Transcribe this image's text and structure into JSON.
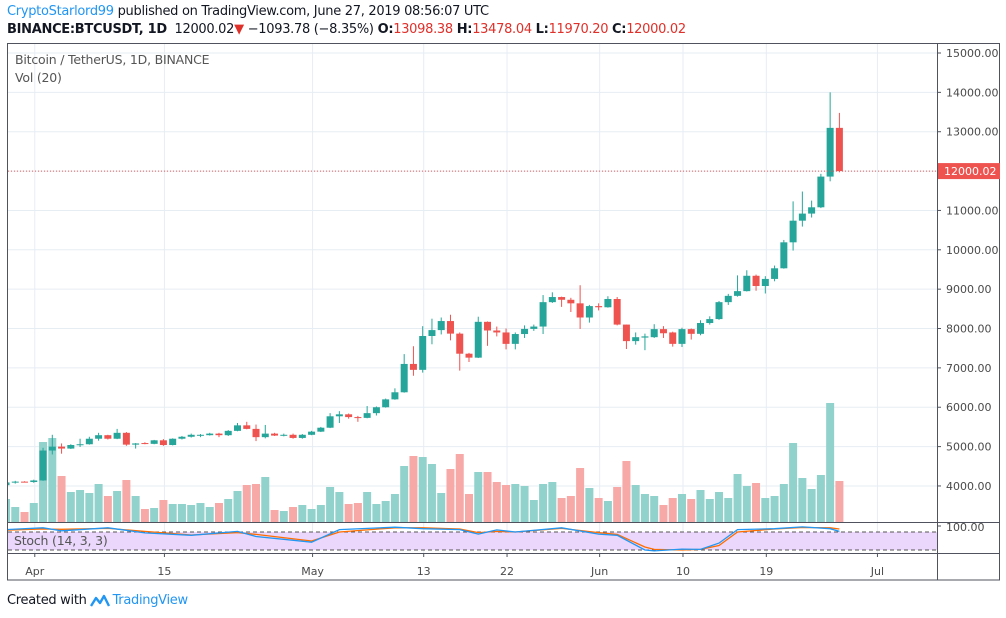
{
  "header": {
    "author": "CryptoStarlord99",
    "published_text": "published on TradingView.com, June 27, 2019 08:56:07 UTC",
    "symbol": "BINANCE:BTCUSDT, 1D",
    "last_price": "12000.02",
    "change_direction_icon": "triangle-down-icon",
    "change": "−1093.78 (−8.35%)",
    "open_label": "O:",
    "open": "13098.38",
    "high_label": "H:",
    "high": "13478.04",
    "low_label": "L:",
    "low": "11970.20",
    "close_label": "C:",
    "close": "12000.02"
  },
  "legend": {
    "title": "Bitcoin / TetherUS, 1D, BINANCE",
    "volume": "Vol (20)",
    "stoch": "Stoch (14, 3, 3)"
  },
  "footer": {
    "created_with": "Created with",
    "brand": "TradingView"
  },
  "colors": {
    "up": "#26a69a",
    "down": "#ef5350",
    "volume_up": "#92d2cc",
    "volume_down": "#f7a9a7",
    "stoch_k": "#2196f3",
    "stoch_d": "#ff6d00",
    "stoch_band": "#ead7fb",
    "link": "#2196f3"
  },
  "chart_data": {
    "type": "candlestick",
    "title": "Bitcoin / TetherUS, 1D, BINANCE",
    "price_axis": {
      "ylim": [
        3700,
        15250
      ],
      "tick_labels": [
        "4000.00",
        "5000.00",
        "6000.00",
        "7000.00",
        "8000.00",
        "9000.00",
        "10000.00",
        "11000.00",
        "12000.00",
        "13000.00",
        "14000.00",
        "15000.00"
      ],
      "current_price_label": "12000.02"
    },
    "time_axis": {
      "tick_labels": [
        {
          "date": "2019-04-01",
          "label": "Apr"
        },
        {
          "date": "2019-04-15",
          "label": "15"
        },
        {
          "date": "2019-05-01",
          "label": "May"
        },
        {
          "date": "2019-05-13",
          "label": "13"
        },
        {
          "date": "2019-05-22",
          "label": "22"
        },
        {
          "date": "2019-06-01",
          "label": "Jun"
        },
        {
          "date": "2019-06-10",
          "label": "10"
        },
        {
          "date": "2019-06-19",
          "label": "19"
        },
        {
          "date": "2019-07-01",
          "label": "Jul"
        }
      ]
    },
    "grid": true,
    "volume_relative_scale_note": "volume values are relative (no volume axis shown)",
    "candles_fields": [
      "date",
      "open",
      "high",
      "low",
      "close",
      "volume"
    ],
    "candles": [
      [
        "2019-03-29",
        4020,
        4100,
        4010,
        4090,
        23
      ],
      [
        "2019-03-30",
        4090,
        4130,
        4060,
        4110,
        15
      ],
      [
        "2019-03-31",
        4110,
        4120,
        4090,
        4100,
        10
      ],
      [
        "2019-04-01",
        4100,
        4160,
        4080,
        4140,
        19
      ],
      [
        "2019-04-02",
        4140,
        4970,
        4130,
        4900,
        80
      ],
      [
        "2019-04-03",
        4900,
        5300,
        4800,
        5000,
        84
      ],
      [
        "2019-04-04",
        5000,
        5080,
        4820,
        4950,
        46
      ],
      [
        "2019-04-05",
        4950,
        5060,
        4940,
        5040,
        30
      ],
      [
        "2019-04-06",
        5040,
        5200,
        4990,
        5060,
        32
      ],
      [
        "2019-04-07",
        5060,
        5250,
        5050,
        5200,
        29
      ],
      [
        "2019-04-08",
        5200,
        5350,
        5150,
        5290,
        38
      ],
      [
        "2019-04-09",
        5290,
        5300,
        5180,
        5200,
        26
      ],
      [
        "2019-04-10",
        5200,
        5450,
        5190,
        5350,
        31
      ],
      [
        "2019-04-11",
        5350,
        5370,
        5020,
        5050,
        42
      ],
      [
        "2019-04-12",
        5050,
        5090,
        4950,
        5080,
        26
      ],
      [
        "2019-04-13",
        5090,
        5110,
        5060,
        5070,
        13
      ],
      [
        "2019-04-14",
        5070,
        5170,
        5060,
        5160,
        14
      ],
      [
        "2019-04-15",
        5160,
        5190,
        5020,
        5040,
        22
      ],
      [
        "2019-04-16",
        5040,
        5210,
        5030,
        5200,
        18
      ],
      [
        "2019-04-17",
        5200,
        5270,
        5180,
        5250,
        18
      ],
      [
        "2019-04-18",
        5250,
        5330,
        5230,
        5300,
        17
      ],
      [
        "2019-04-19",
        5290,
        5320,
        5240,
        5300,
        19
      ],
      [
        "2019-04-20",
        5290,
        5350,
        5280,
        5330,
        15
      ],
      [
        "2019-04-21",
        5330,
        5350,
        5240,
        5290,
        19
      ],
      [
        "2019-04-22",
        5290,
        5420,
        5270,
        5400,
        23
      ],
      [
        "2019-04-23",
        5400,
        5600,
        5390,
        5540,
        31
      ],
      [
        "2019-04-24",
        5540,
        5630,
        5440,
        5450,
        37
      ],
      [
        "2019-04-25",
        5450,
        5560,
        5140,
        5240,
        38
      ],
      [
        "2019-04-26",
        5240,
        5550,
        5210,
        5330,
        45
      ],
      [
        "2019-04-27",
        5330,
        5350,
        5270,
        5280,
        12
      ],
      [
        "2019-04-28",
        5280,
        5330,
        5260,
        5300,
        11
      ],
      [
        "2019-04-29",
        5300,
        5330,
        5200,
        5220,
        15
      ],
      [
        "2019-04-30",
        5220,
        5320,
        5200,
        5300,
        17
      ],
      [
        "2019-05-01",
        5300,
        5400,
        5290,
        5380,
        13
      ],
      [
        "2019-05-02",
        5380,
        5500,
        5370,
        5480,
        17
      ],
      [
        "2019-05-03",
        5480,
        5850,
        5470,
        5770,
        35
      ],
      [
        "2019-05-04",
        5770,
        5900,
        5600,
        5820,
        30
      ],
      [
        "2019-05-05",
        5820,
        5840,
        5710,
        5750,
        18
      ],
      [
        "2019-05-06",
        5750,
        5780,
        5630,
        5730,
        19
      ],
      [
        "2019-05-07",
        5730,
        6030,
        5720,
        5850,
        30
      ],
      [
        "2019-05-08",
        5850,
        6020,
        5790,
        6000,
        18
      ],
      [
        "2019-05-09",
        6000,
        6220,
        5990,
        6200,
        21
      ],
      [
        "2019-05-10",
        6200,
        6480,
        6190,
        6380,
        28
      ],
      [
        "2019-05-11",
        6380,
        7350,
        6370,
        7100,
        56
      ],
      [
        "2019-05-12",
        7100,
        7550,
        6800,
        6950,
        66
      ],
      [
        "2019-05-13",
        6950,
        8060,
        6880,
        7810,
        65
      ],
      [
        "2019-05-14",
        7810,
        8250,
        7600,
        7960,
        58
      ],
      [
        "2019-05-15",
        7960,
        8280,
        7850,
        8190,
        29
      ],
      [
        "2019-05-16",
        8190,
        8350,
        7700,
        7870,
        53
      ],
      [
        "2019-05-17",
        7870,
        7900,
        6930,
        7360,
        68
      ],
      [
        "2019-05-18",
        7360,
        7380,
        7150,
        7260,
        28
      ],
      [
        "2019-05-19",
        7260,
        8300,
        7250,
        8170,
        50
      ],
      [
        "2019-05-20",
        8170,
        8180,
        7560,
        7950,
        50
      ],
      [
        "2019-05-21",
        7950,
        8050,
        7800,
        7900,
        40
      ],
      [
        "2019-05-22",
        7900,
        8000,
        7470,
        7610,
        37
      ],
      [
        "2019-05-23",
        7610,
        7900,
        7470,
        7860,
        38
      ],
      [
        "2019-05-24",
        7860,
        8080,
        7760,
        7990,
        36
      ],
      [
        "2019-05-25",
        7990,
        8100,
        7940,
        8050,
        22
      ],
      [
        "2019-05-26",
        8050,
        8850,
        7860,
        8670,
        38
      ],
      [
        "2019-05-27",
        8670,
        8920,
        8650,
        8800,
        40
      ],
      [
        "2019-05-28",
        8800,
        8810,
        8550,
        8730,
        24
      ],
      [
        "2019-05-29",
        8730,
        8780,
        8420,
        8640,
        26
      ],
      [
        "2019-05-30",
        8640,
        9100,
        7990,
        8280,
        54
      ],
      [
        "2019-05-31",
        8280,
        8600,
        8150,
        8570,
        34
      ],
      [
        "2019-06-01",
        8570,
        8640,
        8460,
        8540,
        24
      ],
      [
        "2019-06-02",
        8540,
        8820,
        8530,
        8750,
        21
      ],
      [
        "2019-06-03",
        8750,
        8800,
        8080,
        8100,
        35
      ],
      [
        "2019-06-04",
        8100,
        8100,
        7480,
        7680,
        61
      ],
      [
        "2019-06-05",
        7680,
        7900,
        7590,
        7780,
        37
      ],
      [
        "2019-06-06",
        7770,
        7870,
        7450,
        7800,
        28
      ],
      [
        "2019-06-07",
        7780,
        8110,
        7760,
        7985,
        26
      ],
      [
        "2019-06-08",
        7985,
        8060,
        7760,
        7880,
        17
      ],
      [
        "2019-06-09",
        7900,
        7920,
        7540,
        7610,
        24
      ],
      [
        "2019-06-10",
        7610,
        8020,
        7530,
        7985,
        28
      ],
      [
        "2019-06-11",
        7985,
        8000,
        7720,
        7865,
        23
      ],
      [
        "2019-06-12",
        7865,
        8210,
        7830,
        8140,
        32
      ],
      [
        "2019-06-13",
        8140,
        8310,
        8100,
        8240,
        23
      ],
      [
        "2019-06-14",
        8240,
        8700,
        8220,
        8670,
        30
      ],
      [
        "2019-06-15",
        8670,
        8880,
        8600,
        8830,
        24
      ],
      [
        "2019-06-16",
        8830,
        9350,
        8810,
        8950,
        48
      ],
      [
        "2019-06-17",
        8950,
        9480,
        8940,
        9340,
        36
      ],
      [
        "2019-06-18",
        9340,
        9370,
        8960,
        9080,
        39
      ],
      [
        "2019-06-19",
        9080,
        9330,
        8890,
        9260,
        24
      ],
      [
        "2019-06-20",
        9260,
        9600,
        9200,
        9530,
        26
      ],
      [
        "2019-06-21",
        9530,
        10250,
        9520,
        10190,
        38
      ],
      [
        "2019-06-22",
        10190,
        11230,
        9980,
        10740,
        79
      ],
      [
        "2019-06-23",
        10740,
        11480,
        10590,
        10920,
        44
      ],
      [
        "2019-06-24",
        10920,
        11250,
        10820,
        11080,
        33
      ],
      [
        "2019-06-25",
        11080,
        11930,
        11060,
        11860,
        47
      ],
      [
        "2019-06-26",
        11860,
        14000,
        11740,
        13098,
        119
      ],
      [
        "2019-06-27",
        13098,
        13478,
        11970,
        12000.02,
        41
      ]
    ],
    "stoch": {
      "label": "Stoch (14, 3, 3)",
      "upper_band": 80,
      "lower_band": 20,
      "tick_label": "100.00",
      "points_fields": [
        "date",
        "k",
        "d"
      ],
      "points": [
        [
          "2019-03-29",
          88,
          86
        ],
        [
          "2019-04-02",
          94,
          90
        ],
        [
          "2019-04-04",
          84,
          89
        ],
        [
          "2019-04-09",
          94,
          92
        ],
        [
          "2019-04-13",
          77,
          82
        ],
        [
          "2019-04-18",
          69,
          70
        ],
        [
          "2019-04-23",
          82,
          78
        ],
        [
          "2019-04-25",
          65,
          72
        ],
        [
          "2019-05-01",
          46,
          50
        ],
        [
          "2019-05-04",
          88,
          80
        ],
        [
          "2019-05-10",
          96,
          94
        ],
        [
          "2019-05-13",
          91,
          94
        ],
        [
          "2019-05-17",
          88,
          90
        ],
        [
          "2019-05-19",
          73,
          78
        ],
        [
          "2019-05-21",
          87,
          82
        ],
        [
          "2019-05-23",
          80,
          80
        ],
        [
          "2019-05-28",
          94,
          92
        ],
        [
          "2019-06-01",
          73,
          78
        ],
        [
          "2019-06-03",
          69,
          72
        ],
        [
          "2019-06-06",
          20,
          30
        ],
        [
          "2019-06-07",
          17,
          22
        ],
        [
          "2019-06-10",
          23,
          20
        ],
        [
          "2019-06-12",
          22,
          22
        ],
        [
          "2019-06-14",
          43,
          35
        ],
        [
          "2019-06-16",
          88,
          80
        ],
        [
          "2019-06-20",
          91,
          90
        ],
        [
          "2019-06-23",
          97,
          95
        ],
        [
          "2019-06-26",
          91,
          94
        ],
        [
          "2019-06-27",
          82,
          90
        ]
      ]
    }
  }
}
